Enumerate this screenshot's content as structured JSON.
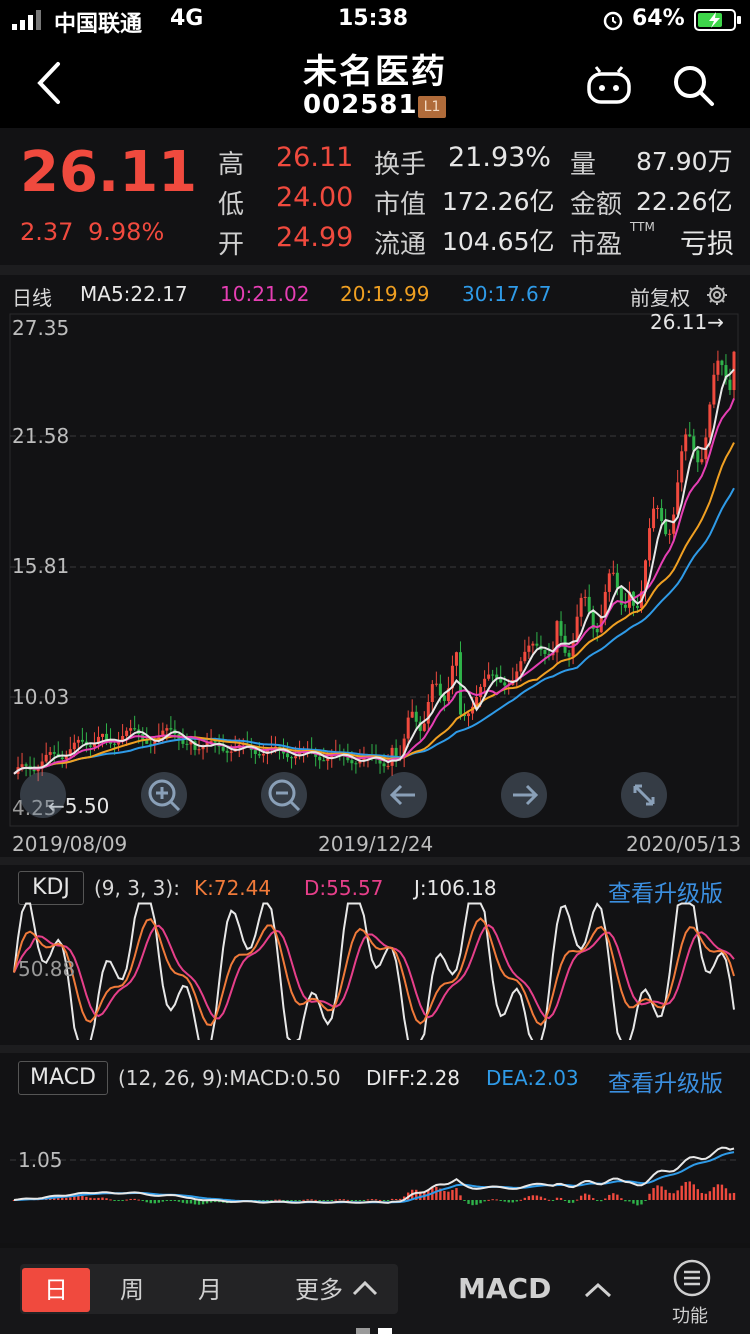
{
  "status": {
    "carrier": "中国联通",
    "network": "4G",
    "time": "15:38",
    "battery": "64%",
    "icons": [
      "signal-icon",
      "alarm-icon",
      "battery-icon"
    ]
  },
  "header": {
    "title": "未名医药",
    "code": "002581",
    "level": "L1",
    "icons": [
      "back-icon",
      "robot-icon",
      "search-icon"
    ]
  },
  "quote": {
    "price": "26.11",
    "change": "2.37",
    "change_pct": "9.98%",
    "high_label": "高",
    "high": "26.11",
    "low_label": "低",
    "low": "24.00",
    "open_label": "开",
    "open": "24.99",
    "turnover_label": "换手",
    "turnover": "21.93%",
    "mcap_label": "市值",
    "mcap": "172.26亿",
    "float_label": "流通",
    "float": "104.65亿",
    "vol_label": "量",
    "vol": "87.90万",
    "amount_label": "金额",
    "amount": "22.26亿",
    "pe_label": "市盈",
    "pe_sup": "TTM",
    "pe": "亏损"
  },
  "kline": {
    "period": "日线",
    "ma5": "MA5:22.17",
    "ma10": "10:21.02",
    "ma20": "20:19.99",
    "ma30": "30:17.67",
    "adjust": "前复权",
    "last_price_marker": "26.11→",
    "y_ticks": [
      "27.35",
      "21.58",
      "15.81",
      "10.03",
      "4.25"
    ],
    "low_marker": "←5.50",
    "dates": [
      "2019/08/09",
      "2019/12/24",
      "2020/05/13"
    ],
    "colors": {
      "ma5": "#e8e8e8",
      "ma10": "#e63fb4",
      "ma20": "#f0a022",
      "ma30": "#2f9be8",
      "up": "#f04a3e",
      "down": "#2fb34a"
    }
  },
  "controls": [
    "zoom-in-icon",
    "zoom-out-icon",
    "arrow-left-icon",
    "arrow-right-icon",
    "fullscreen-icon"
  ],
  "kdj": {
    "name": "KDJ",
    "params": "(9, 3, 3):",
    "k": "K:72.44",
    "d": "D:55.57",
    "j": "J:106.18",
    "mid": "50.88",
    "upgrade": "查看升级版"
  },
  "macd": {
    "name": "MACD",
    "params": "(12, 26, 9):MACD:0.50",
    "diff": "DIFF:2.28",
    "dea": "DEA:2.03",
    "level": "1.05",
    "upgrade": "查看升级版"
  },
  "bottom": {
    "tabs": [
      "日",
      "周",
      "月",
      "更多"
    ],
    "indicator": "MACD",
    "func": "功能"
  }
}
